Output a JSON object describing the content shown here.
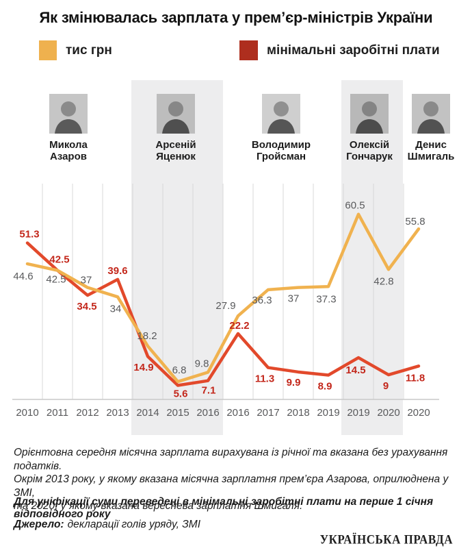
{
  "title": "Як змінювалась зарплата у прем’єр-міністрів України",
  "legend": {
    "series1": {
      "label": "тис грн",
      "color": "#efb14e"
    },
    "series2": {
      "label": "мінімальні заробітні плати",
      "color": "#ae2e1e"
    }
  },
  "prime_ministers": [
    {
      "name_lines": [
        "Микола",
        "Азаров"
      ],
      "highlighted": false
    },
    {
      "name_lines": [
        "Арсеній",
        "Яценюк"
      ],
      "highlighted": true
    },
    {
      "name_lines": [
        "Володимир",
        "Гройсман"
      ],
      "highlighted": false
    },
    {
      "name_lines": [
        "Олексій",
        "Гончарук"
      ],
      "highlighted": true
    },
    {
      "name_lines": [
        "Денис",
        "Шмигаль"
      ],
      "highlighted": false
    }
  ],
  "chart_data": {
    "type": "line",
    "title": "Як змінювалась зарплата у прем’єр-міністрів України",
    "categories": [
      "2010",
      "2011",
      "2012",
      "2013",
      "2014",
      "2015",
      "2016",
      "2016",
      "2017",
      "2018",
      "2019",
      "2019",
      "2020",
      "2020"
    ],
    "series": [
      {
        "name": "тис грн",
        "color": "#f0b24f",
        "label_color": "#58595b",
        "values": [
          44.6,
          42.5,
          37,
          34,
          18.2,
          6.8,
          9.8,
          27.9,
          36.3,
          37,
          37.3,
          60.5,
          42.8,
          55.8
        ]
      },
      {
        "name": "мінімальні заробітні плати",
        "color": "#e2492b",
        "label_color": "#c3271b",
        "values": [
          51.3,
          42.5,
          34.5,
          39.6,
          14.9,
          5.6,
          7.1,
          22.2,
          11.3,
          9.9,
          8.9,
          14.5,
          9,
          11.8
        ]
      }
    ],
    "ylim": [
      0,
      70
    ],
    "grid": "vertical-separators",
    "legend_position": "top",
    "highlight_bands": [
      {
        "from": "2014",
        "to": "2016",
        "pm": "Арсеній Яценюк"
      },
      {
        "from": "2019",
        "to": "2020",
        "pm": "Олексій Гончарук"
      }
    ]
  },
  "footnotes": {
    "note1_lines": [
      "Орієнтовна середня місячна зарплата вирахувана із річної та вказана без урахування податків.",
      "Окрім 2013 року, у якому вказана місячна зарплатня прем’єра Азарова, оприлюднена у ЗМІ,",
      "та 2020, у якому вказана вереснева зарплатня Шмигаля."
    ],
    "note2": "Для уніфікації суми переведені в мінімальні заробітні плати на перше 1 січня відповідного року",
    "source_label": "Джерело:",
    "source_text": "декларації голів уряду, ЗМІ"
  },
  "branding": {
    "logo_text": "УКРАЇНСЬКА ПРАВДА"
  }
}
